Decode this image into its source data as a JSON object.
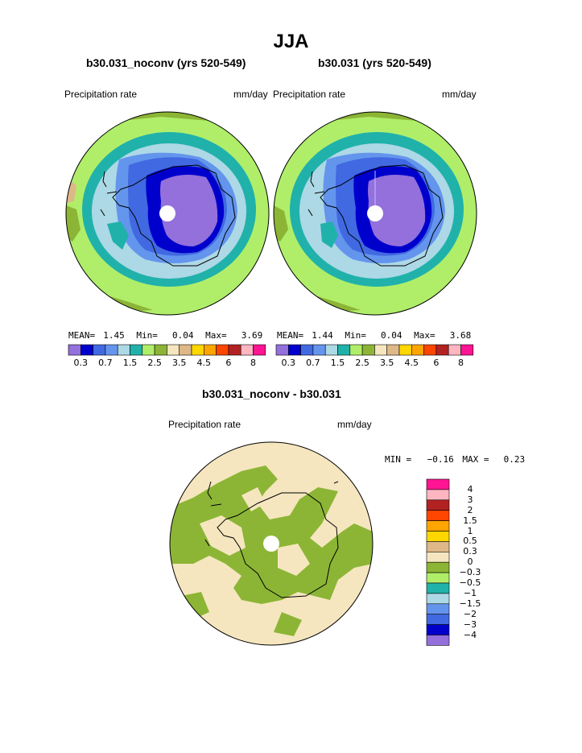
{
  "title": "JJA",
  "panels": [
    {
      "id": "left",
      "run_title": "b30.031_noconv (yrs 520-549)",
      "field_label": "Precipitation rate",
      "units": "mm/day",
      "stats": {
        "mean_label": "MEAN=",
        "mean": "1.45",
        "min_label": "Min=",
        "min": "0.04",
        "max_label": "Max=",
        "max": "3.69"
      }
    },
    {
      "id": "right",
      "run_title": "b30.031 (yrs 520-549)",
      "field_label": "Precipitation rate",
      "units": "mm/day",
      "stats": {
        "mean_label": "MEAN=",
        "mean": "1.44",
        "min_label": "Min=",
        "min": "0.04",
        "max_label": "Max=",
        "max": "3.68"
      }
    }
  ],
  "top_colorbar": {
    "colors": [
      "#9370db",
      "#0000cd",
      "#4169e1",
      "#6495ed",
      "#add8e6",
      "#20b2aa",
      "#b0ee6a",
      "#8cb535",
      "#f5e6bf",
      "#deb887",
      "#ffd700",
      "#ffa500",
      "#ff4500",
      "#b22222",
      "#ffb6c1",
      "#ff1493"
    ],
    "tick_labels": [
      "0.3",
      "0.7",
      "1.5",
      "2.5",
      "3.5",
      "4.5",
      "6",
      "8"
    ]
  },
  "diff_panel": {
    "title": "b30.031_noconv - b30.031",
    "field_label": "Precipitation rate",
    "units": "mm/day",
    "stats": {
      "min_label": "MIN =",
      "min": "−0.16",
      "max_label": "MAX =",
      "max": "0.23"
    },
    "colorbar": {
      "colors_top_to_bottom": [
        "#ff1493",
        "#ffb6c1",
        "#b22222",
        "#ff4500",
        "#ffa500",
        "#ffd700",
        "#deb887",
        "#f5e6bf",
        "#8cb535",
        "#b0ee6a",
        "#20b2aa",
        "#add8e6",
        "#6495ed",
        "#4169e1",
        "#0000cd",
        "#9370db"
      ],
      "tick_labels": [
        "4",
        "3",
        "2",
        "1.5",
        "1",
        "0.5",
        "0.3",
        "0",
        "−0.3",
        "−0.5",
        "−1",
        "−1.5",
        "−2",
        "−3",
        "−4"
      ]
    }
  },
  "colors": {
    "level_0p3": "#9370db",
    "level_0p7": "#0000cd",
    "level_1": "#4169e1",
    "level_1p5": "#6495ed",
    "level_2": "#add8e6",
    "level_2p5": "#20b2aa",
    "level_3": "#b0ee6a",
    "level_3p5": "#8cb535",
    "level_4": "#f5e6bf",
    "level_4p5": "#deb887"
  }
}
